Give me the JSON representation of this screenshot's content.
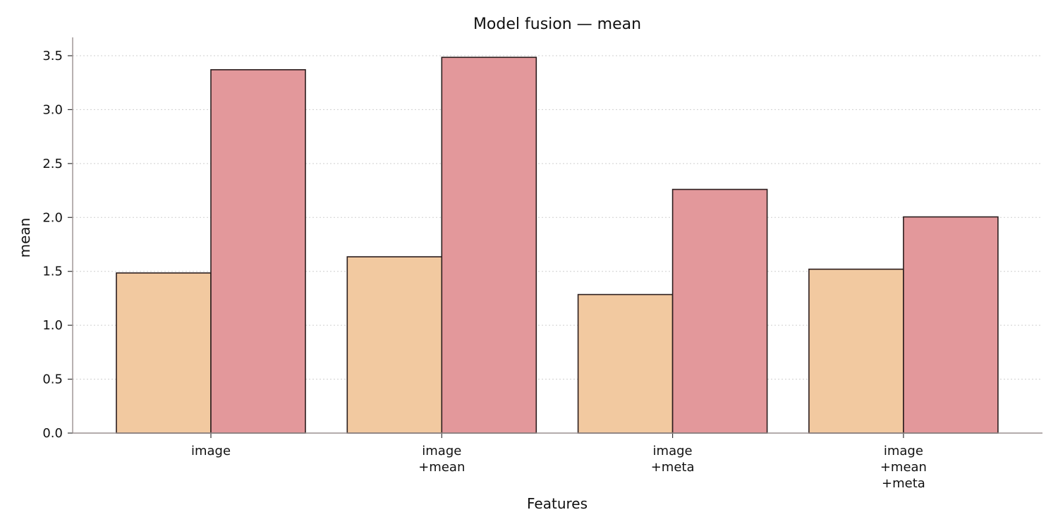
{
  "chart_data": {
    "type": "bar",
    "title": "Model fusion — mean",
    "xlabel": "Features",
    "ylabel": "mean",
    "categories": [
      [
        "image"
      ],
      [
        "image",
        "+mean"
      ],
      [
        "image",
        "+meta"
      ],
      [
        "image",
        "+mean",
        "+meta"
      ]
    ],
    "series": [
      {
        "values": [
          1.485,
          1.635,
          1.285,
          1.52
        ],
        "color": "#f2c9a0"
      },
      {
        "values": [
          3.37,
          3.485,
          2.26,
          2.005
        ],
        "color": "#e3989b"
      }
    ],
    "ylim": [
      0,
      3.67
    ],
    "yticks": [
      "0.0",
      "0.5",
      "1.0",
      "1.5",
      "2.0",
      "2.5",
      "3.0",
      "3.5"
    ],
    "grid": "y-dotted",
    "legend": "none"
  }
}
